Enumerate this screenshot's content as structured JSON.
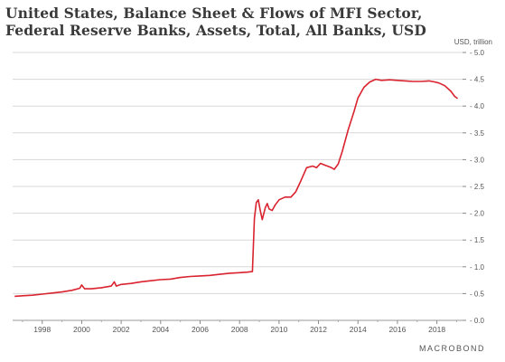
{
  "header": {
    "title_line1": "United States, Balance Sheet & Flows of MFI Sector,",
    "title_line2": "Federal Reserve Banks, Assets, Total, All Banks, USD",
    "unit": "USD, trillion"
  },
  "brand": {
    "watermark": "MACROBOND"
  },
  "colors": {
    "line": "#d9232e",
    "grid": "#d8d8d8",
    "tick_text": "#555555"
  },
  "chart_data": {
    "type": "line",
    "title": "United States, Balance Sheet & Flows of MFI Sector, Federal Reserve Banks, Assets, Total, All Banks, USD",
    "xlabel": "",
    "ylabel": "USD, trillion",
    "xlim": [
      1996.5,
      2019.3
    ],
    "ylim": [
      0,
      5
    ],
    "y_axis_side": "right",
    "grid": "horizontal",
    "x_ticks": [
      "1998",
      "2000",
      "2002",
      "2004",
      "2006",
      "2008",
      "2010",
      "2012",
      "2014",
      "2016",
      "2018"
    ],
    "y_ticks": [
      "0.0",
      "0.5",
      "1.0",
      "1.5",
      "2.0",
      "2.5",
      "3.0",
      "3.5",
      "4.0",
      "4.5",
      "5.0"
    ],
    "series": [
      {
        "name": "",
        "color": "#d9232e",
        "points": [
          [
            1996.6,
            0.45
          ],
          [
            1997.0,
            0.46
          ],
          [
            1997.5,
            0.47
          ],
          [
            1998.0,
            0.49
          ],
          [
            1998.5,
            0.51
          ],
          [
            1999.0,
            0.53
          ],
          [
            1999.5,
            0.56
          ],
          [
            1999.9,
            0.6
          ],
          [
            2000.0,
            0.66
          ],
          [
            2000.15,
            0.59
          ],
          [
            2000.5,
            0.59
          ],
          [
            2001.0,
            0.61
          ],
          [
            2001.5,
            0.64
          ],
          [
            2001.65,
            0.72
          ],
          [
            2001.75,
            0.64
          ],
          [
            2002.0,
            0.67
          ],
          [
            2002.5,
            0.69
          ],
          [
            2003.0,
            0.72
          ],
          [
            2003.5,
            0.74
          ],
          [
            2004.0,
            0.76
          ],
          [
            2004.5,
            0.77
          ],
          [
            2005.0,
            0.8
          ],
          [
            2005.5,
            0.82
          ],
          [
            2006.0,
            0.83
          ],
          [
            2006.5,
            0.84
          ],
          [
            2007.0,
            0.86
          ],
          [
            2007.5,
            0.88
          ],
          [
            2008.0,
            0.89
          ],
          [
            2008.4,
            0.9
          ],
          [
            2008.65,
            0.91
          ],
          [
            2008.75,
            1.9
          ],
          [
            2008.85,
            2.2
          ],
          [
            2008.95,
            2.25
          ],
          [
            2009.05,
            2.05
          ],
          [
            2009.15,
            1.88
          ],
          [
            2009.3,
            2.1
          ],
          [
            2009.4,
            2.18
          ],
          [
            2009.5,
            2.08
          ],
          [
            2009.65,
            2.05
          ],
          [
            2009.8,
            2.15
          ],
          [
            2010.0,
            2.25
          ],
          [
            2010.3,
            2.3
          ],
          [
            2010.6,
            2.3
          ],
          [
            2010.85,
            2.4
          ],
          [
            2011.1,
            2.6
          ],
          [
            2011.4,
            2.85
          ],
          [
            2011.7,
            2.88
          ],
          [
            2011.9,
            2.85
          ],
          [
            2012.1,
            2.93
          ],
          [
            2012.3,
            2.9
          ],
          [
            2012.6,
            2.86
          ],
          [
            2012.8,
            2.82
          ],
          [
            2013.0,
            2.92
          ],
          [
            2013.2,
            3.15
          ],
          [
            2013.5,
            3.55
          ],
          [
            2013.8,
            3.9
          ],
          [
            2014.0,
            4.15
          ],
          [
            2014.3,
            4.35
          ],
          [
            2014.6,
            4.45
          ],
          [
            2014.9,
            4.5
          ],
          [
            2015.2,
            4.48
          ],
          [
            2015.6,
            4.49
          ],
          [
            2016.0,
            4.48
          ],
          [
            2016.4,
            4.47
          ],
          [
            2016.8,
            4.46
          ],
          [
            2017.2,
            4.46
          ],
          [
            2017.6,
            4.47
          ],
          [
            2017.9,
            4.45
          ],
          [
            2018.1,
            4.43
          ],
          [
            2018.4,
            4.38
          ],
          [
            2018.7,
            4.28
          ],
          [
            2018.9,
            4.18
          ],
          [
            2019.05,
            4.14
          ]
        ]
      }
    ]
  }
}
